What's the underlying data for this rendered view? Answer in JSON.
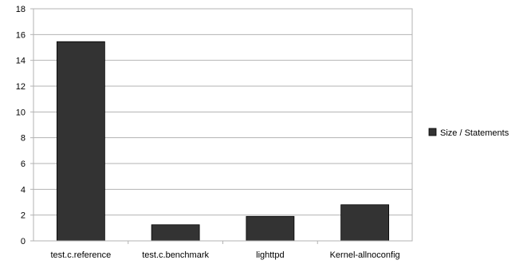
{
  "chart_data": {
    "type": "bar",
    "categories": [
      "test.c.reference",
      "test.c.benchmark",
      "lighttpd",
      "Kernel-allnoconfig"
    ],
    "series": [
      {
        "name": "Size / Statements",
        "values": [
          15.45,
          1.25,
          1.9,
          2.8
        ],
        "color": "#333333"
      }
    ],
    "ylim": [
      0,
      18
    ],
    "yticks": [
      0,
      2,
      4,
      6,
      8,
      10,
      12,
      14,
      16,
      18
    ],
    "grid": true,
    "legend_position": "right",
    "title": "",
    "xlabel": "",
    "ylabel": ""
  }
}
